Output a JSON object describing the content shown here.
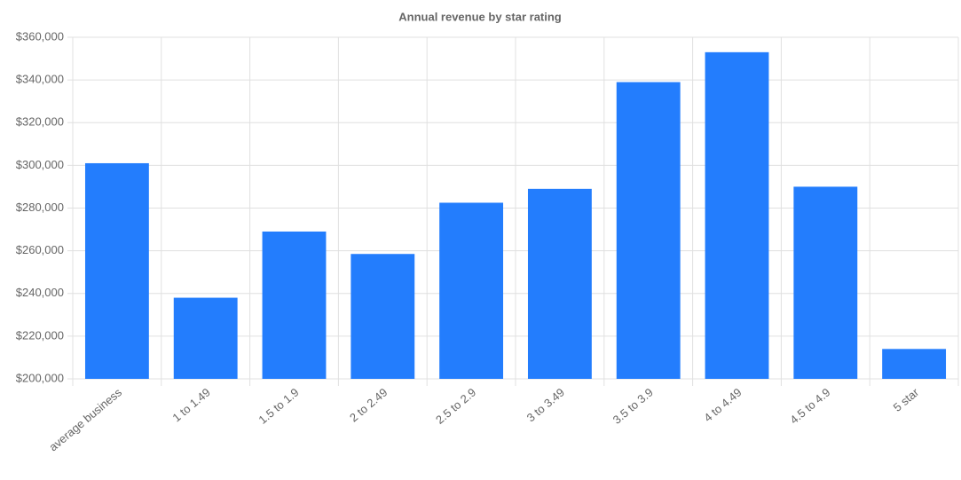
{
  "chart_data": {
    "type": "bar",
    "title": "Annual revenue by star rating",
    "categories": [
      "average business",
      "1 to 1.49",
      "1.5 to 1.9",
      "2 to 2.49",
      "2.5 to 2.9",
      "3 to 3.49",
      "3.5 to 3.9",
      "4 to 4.49",
      "4.5 to 4.9",
      "5 star"
    ],
    "values": [
      301000,
      238000,
      269000,
      258500,
      282500,
      289000,
      339000,
      353000,
      290000,
      214000
    ],
    "color": "#237dfd",
    "ylim": [
      200000,
      360000
    ],
    "yticks": [
      {
        "value": 200000,
        "label": "$200,000"
      },
      {
        "value": 220000,
        "label": "$220,000"
      },
      {
        "value": 240000,
        "label": "$240,000"
      },
      {
        "value": 260000,
        "label": "$260,000"
      },
      {
        "value": 280000,
        "label": "$280,000"
      },
      {
        "value": 300000,
        "label": "$300,000"
      },
      {
        "value": 320000,
        "label": "$320,000"
      },
      {
        "value": 340000,
        "label": "$340,000"
      },
      {
        "value": 360000,
        "label": "$360,000"
      }
    ],
    "grid": true
  }
}
